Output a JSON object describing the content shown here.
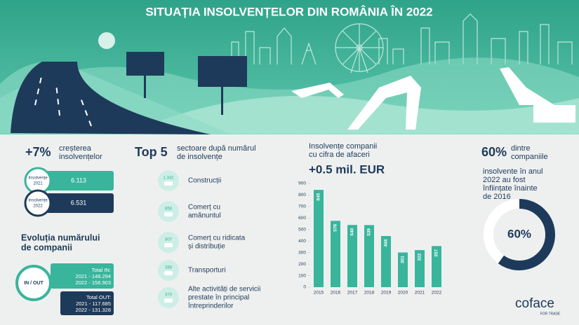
{
  "title": "SITUAȚIA INSOLVENȚELOR DIN ROMÂNIA ÎN 2022",
  "growth": {
    "headline": "+7%",
    "lines": [
      "creșterea",
      "insolvențelor"
    ],
    "rows": [
      {
        "label": [
          "Insolvențe",
          "2021"
        ],
        "value": "6.113"
      },
      {
        "label": [
          "Insolvențe",
          "2022"
        ],
        "value": "6.531"
      }
    ]
  },
  "companies": {
    "title": [
      "Evoluția numărului",
      "de companii"
    ],
    "badge": "IN / OUT",
    "in": [
      "Total IN:",
      "2021 - 148.294",
      "2022 - 156.903"
    ],
    "out": [
      "Total OUT:",
      "2021 - 117.685",
      "2022 - 131.328"
    ]
  },
  "sectors": {
    "headline": "Top 5",
    "lines": [
      "sectoare după numărul",
      "de insolvențe"
    ],
    "items": [
      {
        "count": "1.342",
        "label": [
          "Construcții"
        ]
      },
      {
        "count": "858",
        "label": [
          "Comerț cu",
          "amănuntul"
        ]
      },
      {
        "count": "807",
        "label": [
          "Comerț cu ridicata",
          "și distribuție"
        ]
      },
      {
        "count": "388",
        "label": [
          "Transporturi"
        ]
      },
      {
        "count": "370",
        "label": [
          "Alte activități de servicii",
          "prestate în principal",
          "întreprinderilor"
        ]
      }
    ]
  },
  "turnover": {
    "lines": [
      "Insolvențe companii",
      "cu cifra de afaceri"
    ],
    "headline": "+0.5 mil. EUR",
    "chart_data": {
      "type": "bar",
      "categories": [
        "2015",
        "2016",
        "2017",
        "2018",
        "2019",
        "2020",
        "2021",
        "2022"
      ],
      "values": [
        845,
        576,
        540,
        539,
        444,
        301,
        322,
        357
      ],
      "color": "#39b59c",
      "ylim": [
        0,
        900
      ],
      "yticks": [
        0,
        100,
        200,
        300,
        400,
        500,
        600,
        700,
        800,
        900
      ]
    }
  },
  "age": {
    "headline": "60%",
    "lines": [
      "dintre",
      "companiile",
      "insolvente în anul",
      "2022 au fost",
      "înființate înainte",
      "de 2016"
    ],
    "donut": {
      "value": 60,
      "label": "60%",
      "color": "#1e3a5a"
    }
  },
  "logo": {
    "name": "coface",
    "tagline": "FOR TRADE"
  }
}
